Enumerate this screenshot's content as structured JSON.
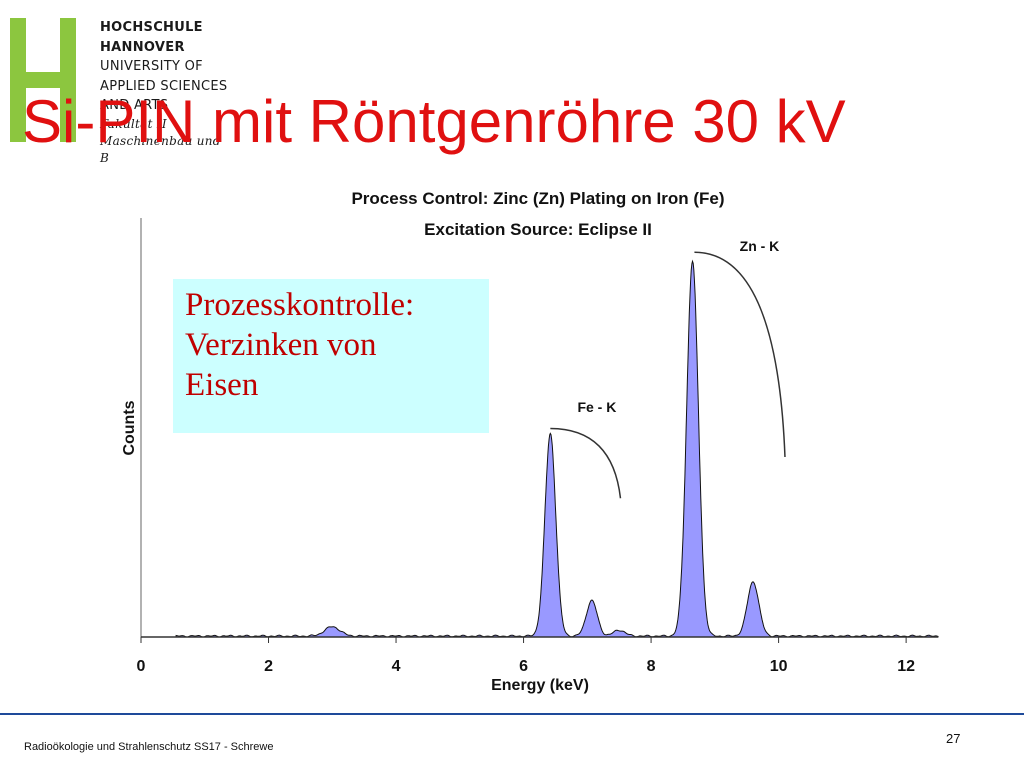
{
  "logo": {
    "line1": "HOCHSCHULE",
    "line2": "HANNOVER",
    "line3": "UNIVERSITY OF",
    "line4": "APPLIED SCIENCES",
    "line5": "AND ARTS",
    "line6": "Fakultät II",
    "line7": "Maschinenbau und",
    "line8": "B",
    "color": "#8cc63f"
  },
  "slide": {
    "title": "Si-PIN mit Röntgenröhre 30 kV",
    "footer": "Radioökologie und Strahlenschutz SS17 - Schrewe",
    "page_number": "27",
    "title_color": "#e01010",
    "footer_line_color": "#1e4a9a"
  },
  "annotation": {
    "line1": "Prozesskontrolle:",
    "line2": "Verzinken von",
    "line3": "Eisen",
    "background": "#ccffff",
    "color": "#c00000"
  },
  "chart_data": {
    "type": "area",
    "title": "Process Control: Zinc (Zn) Plating on Iron (Fe)",
    "subtitle": "Excitation Source: Eclipse II",
    "xlabel": "Energy (keV)",
    "ylabel": "Counts",
    "xlim": [
      0,
      12.5
    ],
    "ylim": [
      0,
      100
    ],
    "xticks": [
      0,
      2,
      4,
      6,
      8,
      10,
      12
    ],
    "grid": false,
    "fill_color": "#9999ff",
    "line_color": "#111111",
    "peaks": [
      {
        "x": 3.0,
        "height": 2.5,
        "width": 0.12
      },
      {
        "x": 6.42,
        "height": 54,
        "width": 0.085
      },
      {
        "x": 7.07,
        "height": 9.5,
        "width": 0.085
      },
      {
        "x": 7.5,
        "height": 1.6,
        "width": 0.09
      },
      {
        "x": 8.65,
        "height": 100,
        "width": 0.092
      },
      {
        "x": 9.6,
        "height": 14.5,
        "width": 0.09
      }
    ],
    "annotations": [
      {
        "text": "Fe - K",
        "x": 7.15,
        "y": 60
      },
      {
        "text": "Zn - K",
        "x": 9.7,
        "y": 103
      }
    ]
  }
}
